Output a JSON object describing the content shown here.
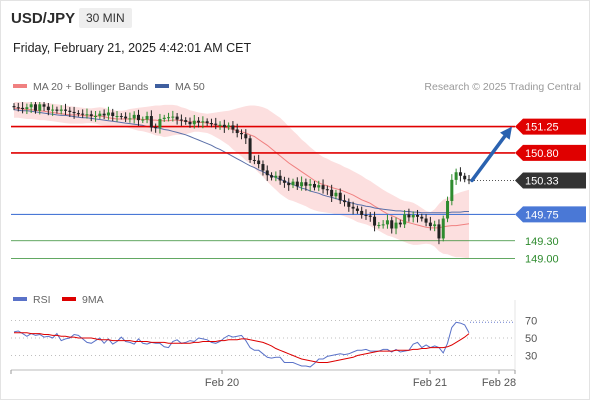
{
  "header": {
    "symbol": "USD/JPY",
    "timeframe": "30 MIN",
    "datetime": "Friday, February 21, 2025 4:42:01 AM CET"
  },
  "legend": {
    "ma20_label": "MA 20 + Bollinger Bands",
    "ma50_label": "MA 50",
    "rsi_label": "RSI",
    "ma9_label": "9MA",
    "copyright": "Research © 2025 Trading Central"
  },
  "colors": {
    "ma20": "#f08080",
    "band_fill": "#fcd9d9",
    "ma50": "#5a6fa8",
    "resistance": "#e00000",
    "support_blue": "#4a78d6",
    "support_green": "#2e8b2e",
    "last_price": "#333333",
    "arrow": "#2a62b0",
    "candle_up": "#2e8b2e",
    "candle_down": "#222222",
    "rsi": "#5a72c8",
    "rsi_ma": "#dd0000"
  },
  "chart_data": [
    {
      "type": "candlestick",
      "title": "USD/JPY",
      "timeframe": "30 MIN",
      "x_ticks": [
        "Feb 20",
        "Feb 21",
        "Feb 28"
      ],
      "ylim": [
        148.75,
        151.55
      ],
      "levels": [
        {
          "value": 151.25,
          "label": "151.25",
          "kind": "resistance"
        },
        {
          "value": 150.8,
          "label": "150.80",
          "kind": "resistance"
        },
        {
          "value": 150.33,
          "label": "150.33",
          "kind": "last"
        },
        {
          "value": 149.75,
          "label": "149.75",
          "kind": "pivot"
        },
        {
          "value": 149.3,
          "label": "149.30",
          "kind": "support"
        },
        {
          "value": 149.0,
          "label": "149.00",
          "kind": "support"
        }
      ],
      "closes": [
        151.58,
        151.57,
        151.55,
        151.58,
        151.63,
        151.52,
        151.63,
        151.59,
        151.53,
        151.54,
        151.52,
        151.54,
        151.52,
        151.5,
        151.48,
        151.47,
        151.46,
        151.46,
        151.43,
        151.43,
        151.47,
        151.44,
        151.49,
        151.43,
        151.43,
        151.42,
        151.39,
        151.39,
        151.45,
        151.36,
        151.37,
        151.43,
        151.24,
        151.23,
        151.38,
        151.4,
        151.41,
        151.42,
        151.37,
        151.36,
        151.33,
        151.29,
        151.35,
        151.32,
        151.34,
        151.31,
        151.3,
        151.28,
        151.28,
        151.24,
        151.27,
        151.2,
        151.14,
        151.12,
        151.05,
        150.68,
        150.67,
        150.61,
        150.5,
        150.42,
        150.38,
        150.41,
        150.33,
        150.29,
        150.25,
        150.31,
        150.23,
        150.3,
        150.24,
        150.27,
        150.21,
        150.25,
        150.18,
        150.17,
        150.06,
        150.12,
        149.99,
        149.96,
        149.88,
        149.85,
        149.81,
        149.74,
        149.73,
        149.71,
        149.56,
        149.57,
        149.58,
        149.65,
        149.51,
        149.61,
        149.58,
        149.75,
        149.7,
        149.74,
        149.71,
        149.68,
        149.61,
        149.55,
        149.58,
        149.34,
        149.68,
        149.98,
        150.34,
        150.47,
        150.41,
        150.35,
        150.33
      ],
      "bollinger_upper": [
        151.73,
        151.72,
        151.71,
        151.7,
        151.69,
        151.68,
        151.67,
        151.66,
        151.65,
        151.64,
        151.63,
        151.62,
        151.61,
        151.6,
        151.59,
        151.58,
        151.57,
        151.56,
        151.56,
        151.57,
        151.58,
        151.57,
        151.55,
        151.53,
        151.52,
        151.52,
        151.53,
        151.55,
        151.56,
        151.57,
        151.58,
        151.59,
        151.6,
        151.61,
        151.61,
        151.62,
        151.62,
        151.62,
        151.61,
        151.58,
        151.56,
        151.53,
        151.51,
        151.49,
        151.48,
        151.47,
        151.48,
        151.49,
        151.5,
        151.51,
        151.52,
        151.54,
        151.56,
        151.58,
        151.6,
        151.61,
        151.61,
        151.6,
        151.58,
        151.55,
        151.5,
        151.45,
        151.4,
        151.33,
        151.25,
        151.18,
        151.11,
        151.03,
        150.97,
        150.9,
        150.84,
        150.78,
        150.73,
        150.7,
        150.66,
        150.63,
        150.6,
        150.56,
        150.53,
        150.49,
        150.45,
        150.41,
        150.36,
        150.32,
        150.27,
        150.22,
        150.17,
        150.13,
        150.09,
        150.05,
        150.01,
        149.98,
        149.97,
        149.95,
        149.91,
        149.86,
        149.81,
        149.79,
        149.84,
        149.93,
        150.0,
        150.03,
        150.07,
        150.1,
        150.13,
        150.15,
        150.17
      ],
      "bollinger_lower": [
        151.4,
        151.4,
        151.39,
        151.38,
        151.38,
        151.37,
        151.36,
        151.36,
        151.35,
        151.34,
        151.33,
        151.32,
        151.31,
        151.3,
        151.3,
        151.3,
        151.3,
        151.31,
        151.31,
        151.3,
        151.28,
        151.27,
        151.26,
        151.25,
        151.25,
        151.24,
        151.24,
        151.22,
        151.2,
        151.18,
        151.17,
        151.15,
        151.13,
        151.1,
        151.09,
        151.07,
        151.08,
        151.1,
        151.11,
        151.11,
        151.12,
        151.14,
        151.16,
        151.16,
        151.15,
        151.14,
        151.11,
        151.07,
        151.03,
        150.98,
        150.93,
        150.86,
        150.8,
        150.74,
        150.67,
        150.62,
        150.54,
        150.46,
        150.39,
        150.31,
        150.24,
        150.17,
        150.1,
        150.05,
        150.0,
        149.98,
        149.95,
        149.92,
        149.89,
        149.85,
        149.82,
        149.8,
        149.79,
        149.78,
        149.77,
        149.75,
        149.74,
        149.72,
        149.69,
        149.66,
        149.62,
        149.6,
        149.58,
        149.55,
        149.51,
        149.47,
        149.43,
        149.39,
        149.37,
        149.34,
        149.31,
        149.28,
        149.25,
        149.23,
        149.23,
        149.24,
        149.25,
        149.24,
        149.2,
        149.12,
        149.08,
        149.07,
        149.04,
        149.02,
        149.02,
        149.01,
        149.0
      ],
      "ma20": [
        151.56,
        151.56,
        151.55,
        151.54,
        151.54,
        151.53,
        151.52,
        151.51,
        151.5,
        151.49,
        151.48,
        151.47,
        151.46,
        151.45,
        151.45,
        151.45,
        151.44,
        151.43,
        151.43,
        151.43,
        151.43,
        151.42,
        151.4,
        151.39,
        151.38,
        151.38,
        151.38,
        151.38,
        151.38,
        151.38,
        151.37,
        151.37,
        151.36,
        151.36,
        151.35,
        151.35,
        151.35,
        151.36,
        151.36,
        151.35,
        151.34,
        151.33,
        151.33,
        151.32,
        151.32,
        151.31,
        151.29,
        151.27,
        151.26,
        151.24,
        151.22,
        151.2,
        151.18,
        151.16,
        151.14,
        151.11,
        151.08,
        151.03,
        150.98,
        150.93,
        150.87,
        150.81,
        150.75,
        150.69,
        150.63,
        150.58,
        150.53,
        150.48,
        150.43,
        150.38,
        150.33,
        150.29,
        150.26,
        150.24,
        150.21,
        150.19,
        150.17,
        150.14,
        150.11,
        150.08,
        150.04,
        150.0,
        149.97,
        149.94,
        149.89,
        149.85,
        149.8,
        149.76,
        149.73,
        149.7,
        149.66,
        149.63,
        149.61,
        149.59,
        149.57,
        149.55,
        149.53,
        149.52,
        149.52,
        149.52,
        149.54,
        149.55,
        149.56,
        149.56,
        149.57,
        149.58,
        149.59
      ],
      "ma50": [
        151.54,
        151.53,
        151.52,
        151.52,
        151.51,
        151.5,
        151.49,
        151.48,
        151.47,
        151.46,
        151.45,
        151.44,
        151.44,
        151.43,
        151.42,
        151.41,
        151.4,
        151.4,
        151.39,
        151.38,
        151.37,
        151.36,
        151.35,
        151.34,
        151.33,
        151.32,
        151.31,
        151.3,
        151.29,
        151.28,
        151.27,
        151.25,
        151.24,
        151.23,
        151.22,
        151.2,
        151.19,
        151.17,
        151.15,
        151.13,
        151.11,
        151.08,
        151.05,
        151.02,
        150.99,
        150.96,
        150.93,
        150.89,
        150.86,
        150.82,
        150.78,
        150.74,
        150.7,
        150.66,
        150.62,
        150.58,
        150.55,
        150.51,
        150.48,
        150.44,
        150.41,
        150.38,
        150.35,
        150.32,
        150.29,
        150.26,
        150.23,
        150.2,
        150.18,
        150.15,
        150.13,
        150.11,
        150.08,
        150.06,
        150.04,
        150.02,
        150.0,
        149.98,
        149.96,
        149.94,
        149.92,
        149.91,
        149.89,
        149.88,
        149.86,
        149.85,
        149.84,
        149.83,
        149.82,
        149.81,
        149.81,
        149.8,
        149.8,
        149.79,
        149.79,
        149.78,
        149.78,
        149.78,
        149.78,
        149.78,
        149.78,
        149.78,
        149.79,
        149.79,
        149.79,
        149.8,
        149.8
      ],
      "projection": {
        "from": 150.33,
        "to": 151.25
      }
    },
    {
      "type": "line",
      "title": "RSI",
      "ylim": [
        15,
        80
      ],
      "y_ticks": [
        70,
        50,
        30
      ],
      "series": [
        {
          "name": "RSI",
          "values": [
            57,
            58,
            55,
            52,
            55,
            53,
            54,
            51,
            52,
            50,
            55,
            47,
            49,
            50,
            54,
            53,
            49,
            45,
            44,
            47,
            50,
            44,
            49,
            43,
            46,
            51,
            46,
            45,
            43,
            49,
            44,
            43,
            45,
            44,
            44,
            40,
            39,
            46,
            48,
            44,
            45,
            47,
            46,
            50,
            49,
            48,
            45,
            44,
            46,
            50,
            53,
            51,
            52,
            53,
            47,
            39,
            36,
            36,
            32,
            28,
            27,
            28,
            28,
            22,
            22,
            22,
            20,
            18,
            18,
            17,
            21,
            26,
            26,
            29,
            30,
            31,
            32,
            31,
            32,
            34,
            36,
            36,
            37,
            35,
            35,
            35,
            37,
            37,
            34,
            37,
            34,
            35,
            36,
            43,
            45,
            39,
            42,
            39,
            41,
            39,
            33,
            44,
            62,
            68,
            67,
            65,
            56
          ]
        },
        {
          "name": "9MA",
          "values": [
            56,
            56,
            56,
            56,
            55,
            55,
            55,
            54,
            54,
            53,
            53,
            52,
            52,
            51,
            51,
            50,
            50,
            50,
            50,
            49,
            48,
            48,
            48,
            47,
            47,
            47,
            47,
            47,
            46,
            46,
            46,
            46,
            45,
            45,
            45,
            45,
            44,
            44,
            44,
            44,
            44,
            44,
            45,
            45,
            46,
            46,
            46,
            46,
            47,
            47,
            48,
            48,
            48,
            49,
            49,
            48,
            47,
            46,
            45,
            43,
            41,
            38,
            36,
            34,
            32,
            30,
            28,
            26,
            25,
            24,
            23,
            22,
            22,
            22,
            23,
            24,
            25,
            26,
            27,
            28,
            30,
            31,
            32,
            33,
            34,
            35,
            35,
            35,
            35,
            36,
            36,
            36,
            36,
            37,
            37,
            38,
            38,
            39,
            39,
            39,
            39,
            40,
            42,
            45,
            48,
            51,
            55
          ]
        }
      ]
    }
  ]
}
